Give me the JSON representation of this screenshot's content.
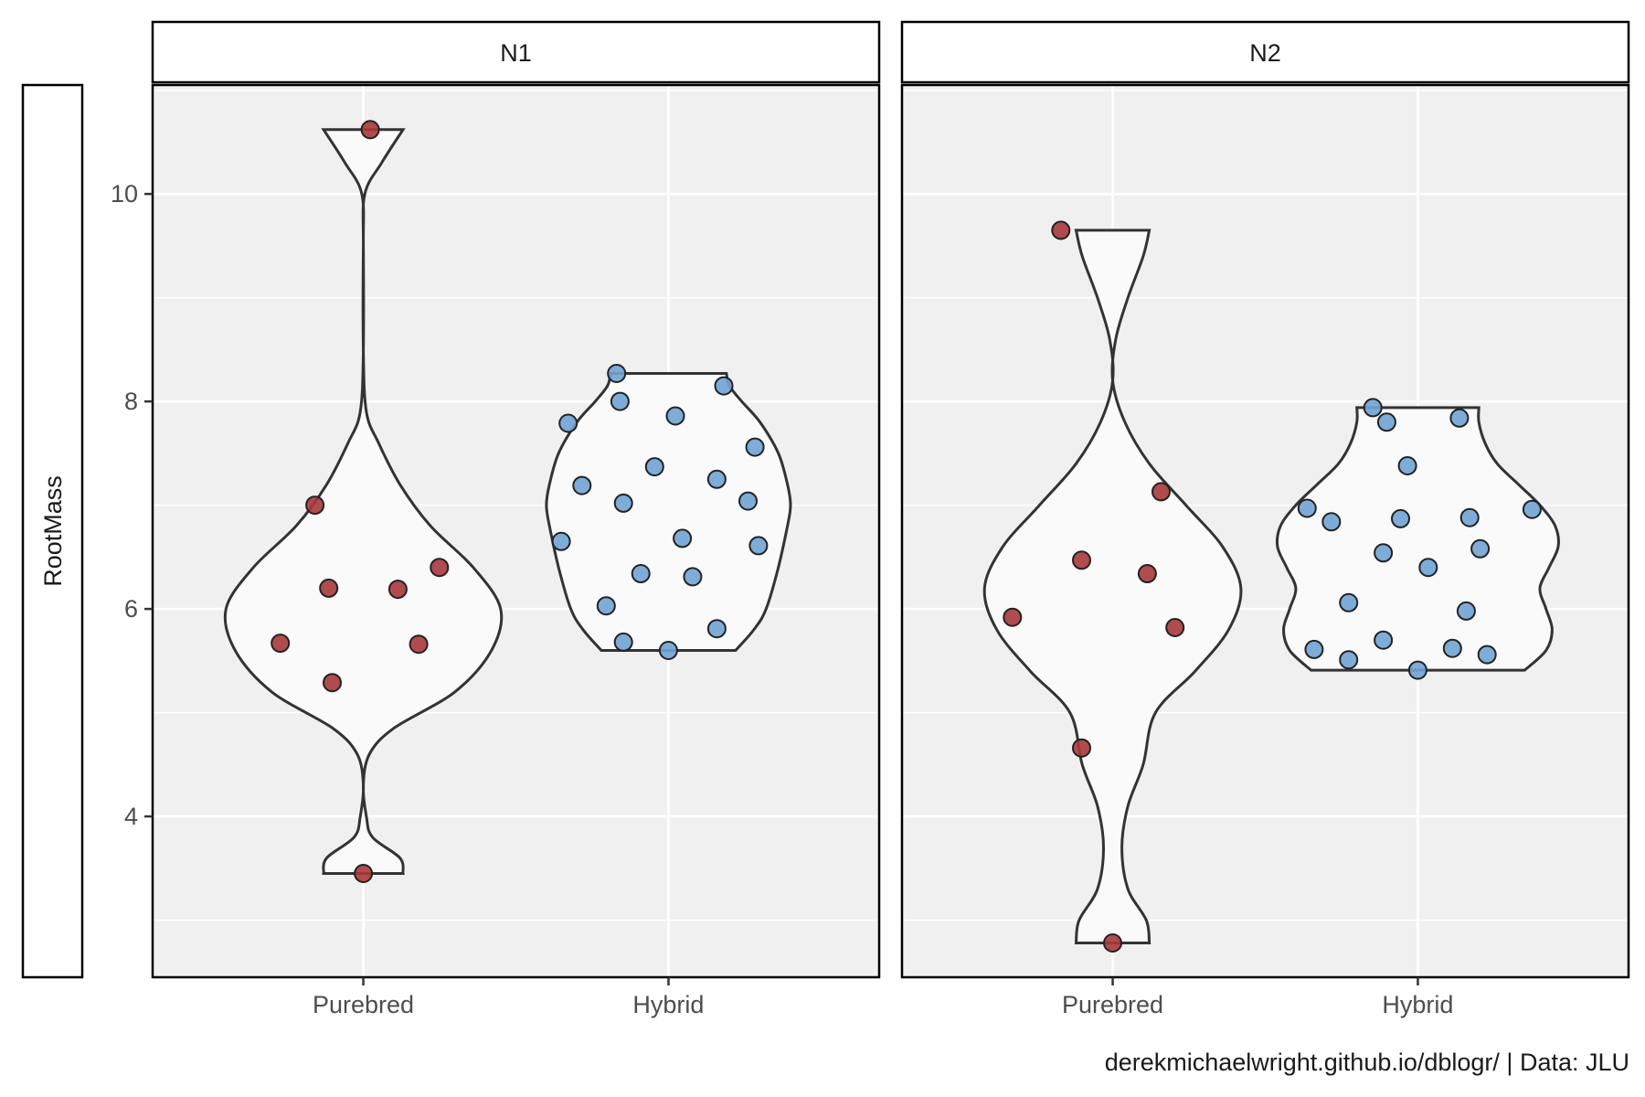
{
  "chart_data": {
    "type": "violin",
    "ylabel": "RootMass",
    "xlabel": "",
    "ylim": [
      2.45,
      11.05
    ],
    "y_ticks": [
      4,
      6,
      8,
      10
    ],
    "categories": [
      "Purebred",
      "Hybrid"
    ],
    "grid": true,
    "colors": {
      "Purebred": "#a8373a",
      "Hybrid": "#6fa3d4",
      "panel_bg": "#f0f0f0",
      "violin_fill": "#fafafa",
      "violin_stroke": "#333333"
    },
    "caption": "derekmichaelwright.github.io/dblogr/ | Data: JLU",
    "facets": [
      {
        "label": "N1",
        "groups": [
          {
            "category": "Purebred",
            "values": [
              10.62,
              7.0,
              6.4,
              6.2,
              6.19,
              5.67,
              5.66,
              5.29,
              3.45
            ],
            "jitter": [
              0.02,
              -0.14,
              0.22,
              -0.1,
              0.1,
              -0.24,
              0.16,
              -0.09,
              0.0
            ],
            "density": [
              [
                3.45,
                0.13
              ],
              [
                3.6,
                0.12
              ],
              [
                3.8,
                0.03
              ],
              [
                4.0,
                0.01
              ],
              [
                4.3,
                0.0
              ],
              [
                4.6,
                0.02
              ],
              [
                4.85,
                0.1
              ],
              [
                5.2,
                0.3
              ],
              [
                5.6,
                0.42
              ],
              [
                6.0,
                0.45
              ],
              [
                6.4,
                0.36
              ],
              [
                6.8,
                0.22
              ],
              [
                7.2,
                0.12
              ],
              [
                7.6,
                0.05
              ],
              [
                7.9,
                0.01
              ],
              [
                8.5,
                0.0
              ],
              [
                9.5,
                0.0
              ],
              [
                10.0,
                0.005
              ],
              [
                10.3,
                0.06
              ],
              [
                10.62,
                0.13
              ]
            ]
          },
          {
            "category": "Hybrid",
            "values": [
              8.27,
              8.15,
              8.0,
              7.86,
              7.79,
              7.56,
              7.37,
              7.25,
              7.19,
              7.04,
              7.02,
              6.68,
              6.65,
              6.61,
              6.34,
              6.31,
              6.03,
              5.81,
              5.68,
              5.6
            ],
            "jitter": [
              -0.15,
              0.16,
              -0.14,
              0.02,
              -0.29,
              0.25,
              -0.04,
              0.14,
              -0.25,
              0.23,
              -0.13,
              0.04,
              -0.31,
              0.26,
              -0.08,
              0.07,
              -0.18,
              0.14,
              -0.13,
              0.0
            ],
            "density": [
              [
                5.6,
                0.22
              ],
              [
                5.8,
                0.28
              ],
              [
                6.0,
                0.32
              ],
              [
                6.4,
                0.36
              ],
              [
                6.8,
                0.39
              ],
              [
                7.0,
                0.4
              ],
              [
                7.2,
                0.39
              ],
              [
                7.5,
                0.36
              ],
              [
                7.8,
                0.3
              ],
              [
                8.0,
                0.24
              ],
              [
                8.15,
                0.2
              ],
              [
                8.27,
                0.19
              ]
            ]
          }
        ]
      },
      {
        "label": "N2",
        "groups": [
          {
            "category": "Purebred",
            "values": [
              9.65,
              7.13,
              6.47,
              6.34,
              5.92,
              5.82,
              4.66,
              2.78
            ],
            "jitter": [
              -0.15,
              0.14,
              -0.09,
              0.1,
              -0.29,
              0.18,
              -0.09,
              0.0
            ],
            "density": [
              [
                2.78,
                0.12
              ],
              [
                3.0,
                0.11
              ],
              [
                3.3,
                0.05
              ],
              [
                3.7,
                0.03
              ],
              [
                4.1,
                0.05
              ],
              [
                4.5,
                0.1
              ],
              [
                5.0,
                0.14
              ],
              [
                5.4,
                0.27
              ],
              [
                5.8,
                0.38
              ],
              [
                6.2,
                0.42
              ],
              [
                6.6,
                0.36
              ],
              [
                7.0,
                0.24
              ],
              [
                7.4,
                0.12
              ],
              [
                7.8,
                0.04
              ],
              [
                8.2,
                0.0
              ],
              [
                8.6,
                0.01
              ],
              [
                9.0,
                0.05
              ],
              [
                9.4,
                0.1
              ],
              [
                9.65,
                0.12
              ]
            ]
          },
          {
            "category": "Hybrid",
            "values": [
              7.94,
              7.84,
              7.8,
              7.38,
              6.97,
              6.96,
              6.88,
              6.87,
              6.84,
              6.58,
              6.54,
              6.4,
              6.06,
              5.98,
              5.7,
              5.62,
              5.61,
              5.56,
              5.51,
              5.41
            ],
            "jitter": [
              -0.13,
              0.12,
              -0.09,
              -0.03,
              -0.32,
              0.33,
              0.15,
              -0.05,
              -0.25,
              0.18,
              -0.1,
              0.03,
              -0.2,
              0.14,
              -0.1,
              0.1,
              -0.3,
              0.2,
              -0.2,
              0.0
            ],
            "density": [
              [
                5.41,
                0.35
              ],
              [
                5.6,
                0.42
              ],
              [
                5.8,
                0.44
              ],
              [
                6.0,
                0.42
              ],
              [
                6.2,
                0.4
              ],
              [
                6.4,
                0.43
              ],
              [
                6.6,
                0.46
              ],
              [
                6.8,
                0.45
              ],
              [
                7.0,
                0.4
              ],
              [
                7.2,
                0.33
              ],
              [
                7.4,
                0.26
              ],
              [
                7.6,
                0.22
              ],
              [
                7.8,
                0.2
              ],
              [
                7.94,
                0.2
              ]
            ]
          }
        ]
      }
    ]
  }
}
